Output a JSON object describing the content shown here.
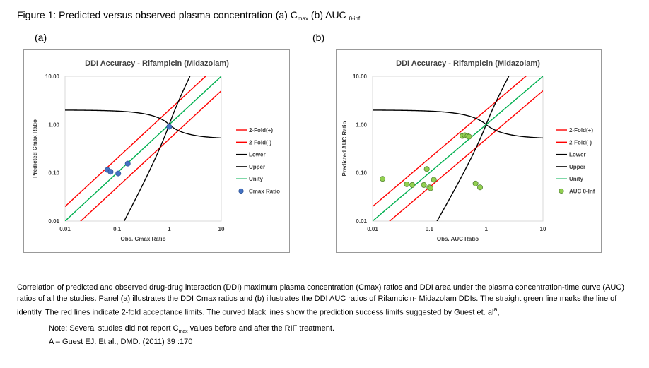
{
  "figure": {
    "title_main": "Figure 1:  Predicted versus observed plasma concentration (a) C",
    "title_sub1": "max",
    "title_mid": " (b) AUC ",
    "title_sub2": "0-inf"
  },
  "panels": [
    {
      "label": "(a)"
    },
    {
      "label": "(b)"
    }
  ],
  "caption": {
    "text_before": "Correlation of predicted and observed drug-drug interaction (DDI) maximum plasma concentration (Cmax) ratios and DDI area under the plasma concentration-time curve (AUC) ratios of all the studies. Panel (a) illustrates the DDI Cmax ratios and (b) illustrates the DDI AUC ratios of Rifampicin- Midazolam DDIs. The straight green line marks the line of identity. The red lines indicate 2-fold acceptance limits. The curved black lines show the prediction success limits suggested by Guest et. al",
    "sup": "a",
    "text_after": ","
  },
  "note": {
    "line1_before": "Note: Several studies did not report C",
    "line1_sub": "max",
    "line1_after": " values before and after the RIF treatment.",
    "line2": "A – Guest EJ. Et al., DMD. (2011) 39 :170"
  },
  "colors": {
    "fold": "#ff0000",
    "guest": "#000000",
    "unity": "#00b050",
    "cmax_marker": "#4472c4",
    "cmax_marker_edge": "#2f5597",
    "auc_marker": "#92d050",
    "auc_marker_edge": "#548235",
    "frame": "#999999",
    "plot_border": "#d9d9d9",
    "text": "#404040"
  },
  "chart_data": [
    {
      "type": "scatter",
      "title": "DDI Accuracy - Rifampicin (Midazolam)",
      "xlabel": "Obs.  Cmax Ratio",
      "ylabel": "Predicted Cmax Ratio",
      "xscale": "log",
      "yscale": "log",
      "xlim": [
        0.01,
        10
      ],
      "ylim": [
        0.01,
        10
      ],
      "xticks": [
        "0.01",
        "0.1",
        "1",
        "10"
      ],
      "yticks": [
        "0.01",
        "0.10",
        "1.00",
        "10.00"
      ],
      "grid": false,
      "legend_position": "right",
      "legend": [
        "2-Fold(+)",
        "2-Fold(-)",
        "Lower",
        "Upper",
        "Unity",
        "Cmax Ratio"
      ],
      "series": [
        {
          "name": "Cmax Ratio",
          "kind": "points",
          "color": "#4472c4",
          "x": [
            0.065,
            0.075,
            0.105,
            0.16,
            1.0
          ],
          "y": [
            0.115,
            0.105,
            0.097,
            0.155,
            0.9
          ]
        }
      ]
    },
    {
      "type": "scatter",
      "title": "DDI Accuracy - Rifampicin (Midazolam)",
      "xlabel": "Obs. AUC Ratio",
      "ylabel": "Predicted AUC Ratio",
      "xscale": "log",
      "yscale": "log",
      "xlim": [
        0.01,
        10
      ],
      "ylim": [
        0.01,
        10
      ],
      "xticks": [
        "0.01",
        "0.1",
        "1",
        "10"
      ],
      "yticks": [
        "0.01",
        "0.10",
        "1.00",
        "10.00"
      ],
      "grid": false,
      "legend_position": "right",
      "legend": [
        "2-Fold(+)",
        "2-Fold(-)",
        "Lower",
        "Upper",
        "Unity",
        "AUC 0-Inf"
      ],
      "series": [
        {
          "name": "AUC 0-Inf",
          "kind": "points",
          "color": "#92d050",
          "x": [
            0.015,
            0.04,
            0.05,
            0.08,
            0.09,
            0.1,
            0.105,
            0.12,
            0.38,
            0.42,
            0.47,
            0.5,
            0.65,
            0.78
          ],
          "y": [
            0.075,
            0.058,
            0.056,
            0.056,
            0.12,
            0.05,
            0.048,
            0.072,
            0.58,
            0.6,
            0.58,
            0.56,
            0.06,
            0.05
          ]
        }
      ]
    }
  ]
}
